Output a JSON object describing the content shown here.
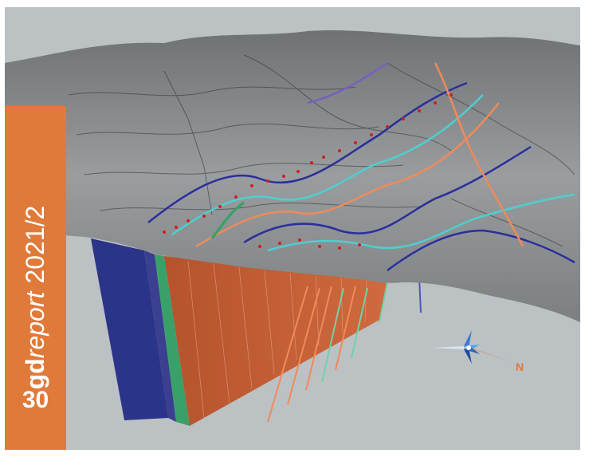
{
  "cover": {
    "brand_bold": "gd",
    "brand_italic": "report",
    "issue": "2021/2",
    "page_number": "30"
  },
  "compass": {
    "north_label": "N"
  },
  "colors": {
    "accent": "#e07a3a",
    "background": "#bcc1c4",
    "terrain": "#8a8d8f",
    "profile_orange": "#c9603a",
    "profile_blue": "#2a3488",
    "profile_green": "#3aa06a",
    "line_cyan": "#4ecfd0",
    "line_navy": "#2a2f9a",
    "line_salmon": "#f08a5a",
    "marker_red": "#d21e1e"
  },
  "icons": [
    "compass-rose-icon"
  ]
}
